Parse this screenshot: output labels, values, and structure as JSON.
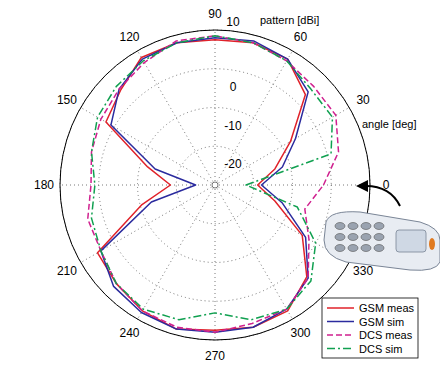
{
  "chart_data": {
    "type": "polar",
    "x_label": "angle [deg]",
    "y_label": "pattern [dBi]",
    "x": [
      0,
      15,
      30,
      45,
      60,
      75,
      90,
      105,
      120,
      135,
      150,
      165,
      180,
      195,
      210,
      225,
      240,
      255,
      270,
      285,
      300,
      315,
      330,
      345
    ],
    "xlim": [
      0,
      360
    ],
    "xticks": [
      0,
      30,
      60,
      90,
      120,
      150,
      180,
      210,
      240,
      270,
      300,
      330
    ],
    "ylim": [
      -30,
      10
    ],
    "yticks": [
      -20,
      -10,
      0,
      10
    ],
    "grid": true,
    "legend": "lower right",
    "series": [
      {
        "name": "GSM meas",
        "color": "#e0222a",
        "line_style": "solid",
        "values": [
          -19,
          -14,
          -7.5,
          3,
          7.5,
          8,
          7.5,
          8,
          8,
          4.5,
          2.5,
          -12,
          -18.5,
          -10.5,
          5,
          6,
          7.5,
          8.5,
          7.5,
          8,
          7.5,
          3.5,
          -4,
          -14
        ]
      },
      {
        "name": "GSM sim",
        "color": "#2b2b9e",
        "line_style": "solid",
        "values": [
          -18,
          -12,
          -6,
          4,
          7.5,
          8.5,
          8,
          8,
          7.5,
          5,
          1,
          -14,
          -25,
          -13,
          4,
          7,
          8,
          8.5,
          8,
          8,
          7,
          4,
          -3,
          -12
        ]
      },
      {
        "name": "DCS meas",
        "color": "#d0208f",
        "line_style": "dashed",
        "values": [
          -2,
          3,
          6,
          6,
          7,
          8,
          8.5,
          8.5,
          6.5,
          5,
          4,
          3,
          2,
          4,
          4,
          6,
          7.5,
          8,
          8,
          7,
          7,
          4,
          -2,
          -6
        ]
      },
      {
        "name": "DCS sim",
        "color": "#10a050",
        "line_style": "dashdot",
        "values": [
          -22,
          1,
          5,
          5,
          7,
          8,
          8.5,
          8,
          7,
          6,
          5,
          3,
          1,
          3,
          4,
          6,
          7,
          6,
          3,
          6,
          7,
          5,
          0,
          -8
        ]
      }
    ]
  }
}
